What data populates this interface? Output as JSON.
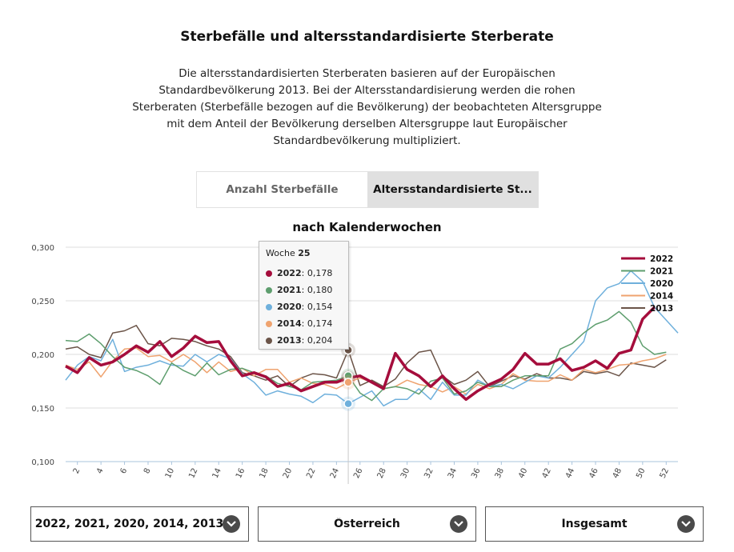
{
  "title": "Sterbefälle und altersstandardisierte Sterberate",
  "description_lines": [
    "Die altersstandardisierten Sterberaten basieren auf der Europäischen",
    "Standardbevölkerung 2013. Bei der Altersstandardisierung werden die rohen",
    "Sterberaten (Sterbefälle bezogen auf die Bevölkerung) der beobachteten Altersgruppe",
    "mit dem Anteil der Bevölkerung derselben Altersgruppe laut Europäischer",
    "Standardbevölkerung multipliziert."
  ],
  "tabs": [
    {
      "label": "Anzahl Sterbefälle",
      "active": false
    },
    {
      "label": "Altersstandardisierte St...",
      "active": true
    }
  ],
  "subtitle": "nach Kalenderwochen",
  "tooltip": {
    "header_prefix": "Woche",
    "header_week": "25",
    "rows": [
      {
        "series": "2022",
        "value": "0,178",
        "color": "#a50d3c"
      },
      {
        "series": "2021",
        "value": "0,180",
        "color": "#5e9e6e"
      },
      {
        "series": "2020",
        "value": "0,154",
        "color": "#6fb0dc"
      },
      {
        "series": "2014",
        "value": "0,174",
        "color": "#efa36f"
      },
      {
        "series": "2013",
        "value": "0,204",
        "color": "#6b5448"
      }
    ]
  },
  "dropdowns": [
    {
      "label": "2022, 2021, 2020, 2014, 2013"
    },
    {
      "label": "Österreich"
    },
    {
      "label": "Insgesamt"
    }
  ],
  "chart_data": {
    "type": "line",
    "title": "nach Kalenderwochen",
    "xlabel": "",
    "ylabel": "",
    "ylim": [
      0.1,
      0.3
    ],
    "yticks": [
      0.1,
      0.15,
      0.2,
      0.25,
      0.3
    ],
    "ytick_labels": [
      "0,100",
      "0,150",
      "0,200",
      "0,250",
      "0,300"
    ],
    "xlim": [
      1,
      53
    ],
    "xticks": [
      2,
      4,
      6,
      8,
      10,
      12,
      14,
      16,
      18,
      20,
      22,
      24,
      26,
      28,
      30,
      32,
      34,
      36,
      38,
      40,
      42,
      44,
      46,
      48,
      50,
      52
    ],
    "grid": true,
    "legend_position": "top-right",
    "highlight_week": 25,
    "series": [
      {
        "name": "2022",
        "color": "#a50d3c",
        "width": 3.5,
        "x": [
          1,
          2,
          3,
          4,
          5,
          6,
          7,
          8,
          9,
          10,
          11,
          12,
          13,
          14,
          15,
          16,
          17,
          18,
          19,
          20,
          21,
          22,
          23,
          24,
          25,
          26,
          27,
          28,
          29,
          30,
          31,
          32,
          33,
          34,
          35,
          36,
          37,
          38,
          39,
          40,
          41,
          42,
          43,
          44,
          45,
          46,
          47,
          48,
          49,
          50,
          51
        ],
        "values": [
          0.189,
          0.183,
          0.197,
          0.19,
          0.193,
          0.2,
          0.208,
          0.202,
          0.212,
          0.198,
          0.206,
          0.217,
          0.211,
          0.212,
          0.194,
          0.18,
          0.183,
          0.179,
          0.17,
          0.173,
          0.166,
          0.17,
          0.174,
          0.174,
          0.178,
          0.18,
          0.174,
          0.168,
          0.201,
          0.186,
          0.18,
          0.17,
          0.18,
          0.168,
          0.158,
          0.166,
          0.172,
          0.177,
          0.186,
          0.201,
          0.191,
          0.191,
          0.196,
          0.185,
          0.188,
          0.194,
          0.187,
          0.201,
          0.204,
          0.233,
          0.244
        ]
      },
      {
        "name": "2021",
        "color": "#5e9e6e",
        "width": 1.5,
        "x": [
          1,
          2,
          3,
          4,
          5,
          6,
          7,
          8,
          9,
          10,
          11,
          12,
          13,
          14,
          15,
          16,
          17,
          18,
          19,
          20,
          21,
          22,
          23,
          24,
          25,
          26,
          27,
          28,
          29,
          30,
          31,
          32,
          33,
          34,
          35,
          36,
          37,
          38,
          39,
          40,
          41,
          42,
          43,
          44,
          45,
          46,
          47,
          48,
          49,
          50,
          51,
          52
        ],
        "values": [
          0.213,
          0.212,
          0.219,
          0.21,
          0.198,
          0.188,
          0.185,
          0.18,
          0.172,
          0.192,
          0.185,
          0.18,
          0.192,
          0.181,
          0.186,
          0.187,
          0.183,
          0.18,
          0.173,
          0.17,
          0.167,
          0.174,
          0.175,
          0.176,
          0.18,
          0.164,
          0.157,
          0.168,
          0.17,
          0.168,
          0.163,
          0.175,
          0.178,
          0.163,
          0.166,
          0.174,
          0.17,
          0.17,
          0.176,
          0.18,
          0.18,
          0.18,
          0.205,
          0.21,
          0.22,
          0.228,
          0.232,
          0.24,
          0.23,
          0.208,
          0.2,
          0.202
        ]
      },
      {
        "name": "2020",
        "color": "#6fb0dc",
        "width": 1.5,
        "x": [
          1,
          2,
          3,
          4,
          5,
          6,
          7,
          8,
          9,
          10,
          11,
          12,
          13,
          14,
          15,
          16,
          17,
          18,
          19,
          20,
          21,
          22,
          23,
          24,
          25,
          26,
          27,
          28,
          29,
          30,
          31,
          32,
          33,
          34,
          35,
          36,
          37,
          38,
          39,
          40,
          41,
          42,
          43,
          44,
          45,
          46,
          47,
          48,
          49,
          50,
          51,
          52,
          53
        ],
        "values": [
          0.176,
          0.19,
          0.198,
          0.194,
          0.214,
          0.184,
          0.188,
          0.19,
          0.194,
          0.19,
          0.189,
          0.2,
          0.193,
          0.2,
          0.196,
          0.182,
          0.174,
          0.162,
          0.166,
          0.163,
          0.161,
          0.155,
          0.163,
          0.162,
          0.154,
          0.16,
          0.166,
          0.152,
          0.158,
          0.158,
          0.168,
          0.158,
          0.174,
          0.162,
          0.162,
          0.176,
          0.17,
          0.172,
          0.168,
          0.174,
          0.18,
          0.178,
          0.188,
          0.2,
          0.212,
          0.25,
          0.262,
          0.266,
          0.278,
          0.268,
          0.244,
          0.232,
          0.22
        ]
      },
      {
        "name": "2014",
        "color": "#efa36f",
        "width": 1.5,
        "x": [
          1,
          2,
          3,
          4,
          5,
          6,
          7,
          8,
          9,
          10,
          11,
          12,
          13,
          14,
          15,
          16,
          17,
          18,
          19,
          20,
          21,
          22,
          23,
          24,
          25,
          26,
          27,
          28,
          29,
          30,
          31,
          32,
          33,
          34,
          35,
          36,
          37,
          38,
          39,
          40,
          41,
          42,
          43,
          44,
          45,
          46,
          47,
          48,
          49,
          50,
          51,
          52
        ],
        "values": [
          0.19,
          0.186,
          0.193,
          0.179,
          0.194,
          0.205,
          0.206,
          0.198,
          0.199,
          0.193,
          0.2,
          0.193,
          0.183,
          0.193,
          0.184,
          0.187,
          0.18,
          0.186,
          0.186,
          0.174,
          0.178,
          0.173,
          0.172,
          0.168,
          0.174,
          0.178,
          0.174,
          0.168,
          0.17,
          0.176,
          0.172,
          0.17,
          0.165,
          0.17,
          0.163,
          0.172,
          0.168,
          0.172,
          0.182,
          0.176,
          0.175,
          0.175,
          0.181,
          0.176,
          0.186,
          0.183,
          0.186,
          0.19,
          0.191,
          0.194,
          0.196,
          0.2
        ]
      },
      {
        "name": "2013",
        "color": "#6b5448",
        "width": 1.5,
        "x": [
          1,
          2,
          3,
          4,
          5,
          6,
          7,
          8,
          9,
          10,
          11,
          12,
          13,
          14,
          15,
          16,
          17,
          18,
          19,
          20,
          21,
          22,
          23,
          24,
          25,
          26,
          27,
          28,
          29,
          30,
          31,
          32,
          33,
          34,
          35,
          36,
          37,
          38,
          39,
          40,
          41,
          42,
          43,
          44,
          45,
          46,
          47,
          48,
          49,
          50,
          51,
          52
        ],
        "values": [
          0.205,
          0.207,
          0.2,
          0.197,
          0.22,
          0.222,
          0.227,
          0.21,
          0.208,
          0.215,
          0.214,
          0.212,
          0.208,
          0.205,
          0.198,
          0.183,
          0.18,
          0.176,
          0.18,
          0.17,
          0.178,
          0.182,
          0.181,
          0.178,
          0.204,
          0.171,
          0.176,
          0.17,
          0.177,
          0.192,
          0.202,
          0.204,
          0.18,
          0.172,
          0.176,
          0.184,
          0.17,
          0.175,
          0.18,
          0.177,
          0.182,
          0.178,
          0.178,
          0.176,
          0.184,
          0.182,
          0.184,
          0.18,
          0.192,
          0.19,
          0.188,
          0.195
        ]
      }
    ]
  }
}
